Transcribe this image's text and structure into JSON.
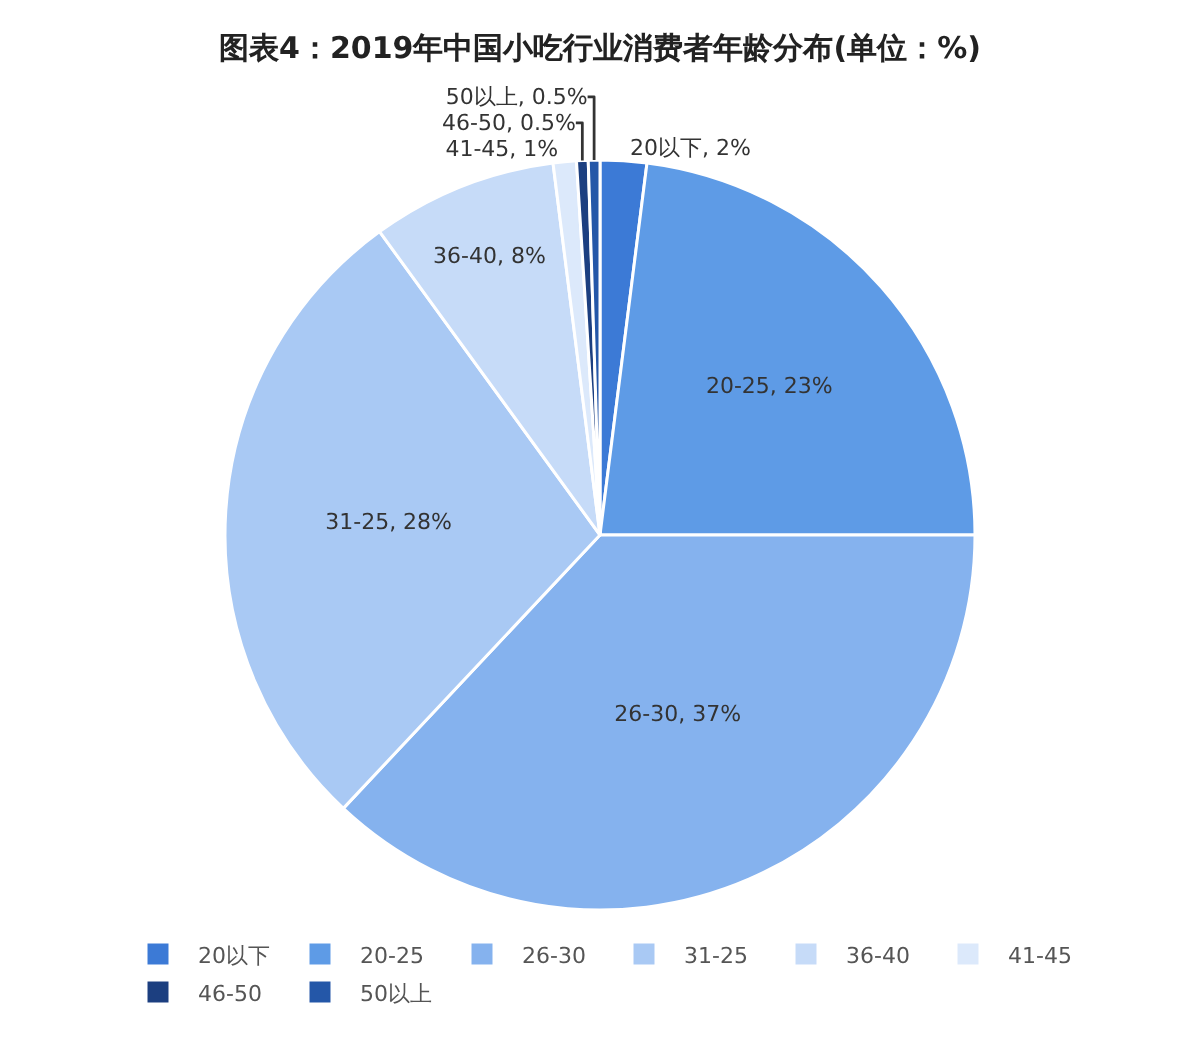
{
  "chart_data": {
    "type": "pie",
    "title": "图表4：2019年中国小吃行业消费者年龄分布(单位：%)",
    "categories": [
      "20以下",
      "20-25",
      "26-30",
      "31-25",
      "36-40",
      "41-45",
      "46-50",
      "50以上"
    ],
    "values": [
      2,
      23,
      37,
      28,
      8,
      1,
      0.5,
      0.5
    ],
    "colors": [
      "#3c7ad6",
      "#5e9be6",
      "#85b2ee",
      "#a9c9f4",
      "#c6dbf8",
      "#dce9fb",
      "#1c3f80",
      "#2457a8"
    ],
    "value_labels": [
      "20以下, 2%",
      "20-25, 23%",
      "26-30, 37%",
      "31-25, 28%",
      "36-40, 8%",
      "41-45, 1%",
      "46-50, 0.5%",
      "50以上, 0.5%"
    ],
    "legend": "bottom"
  }
}
